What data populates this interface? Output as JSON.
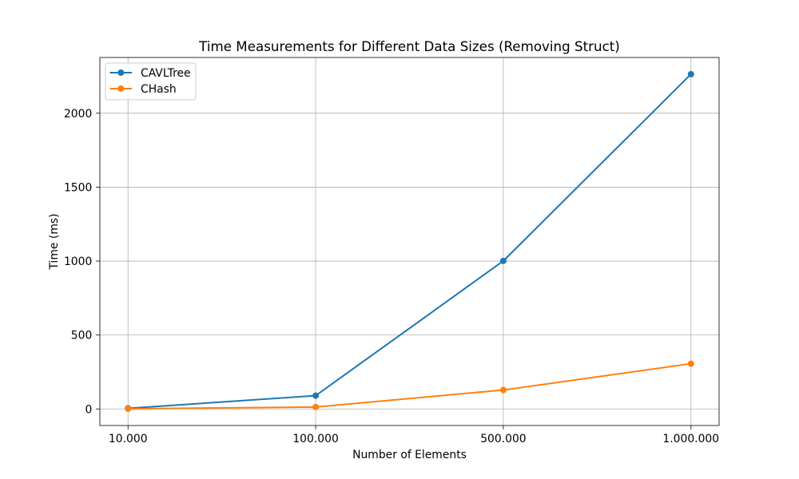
{
  "chart_data": {
    "type": "line",
    "title": "Time Measurements for Different Data Sizes (Removing Struct)",
    "xlabel": "Number of Elements",
    "ylabel": "Time (ms)",
    "categories": [
      "10.000",
      "100.000",
      "500.000",
      "1.000.000"
    ],
    "series": [
      {
        "name": "CAVLTree",
        "color": "#1f77b4",
        "marker": "circle",
        "values": [
          4,
          90,
          1001,
          2264
        ]
      },
      {
        "name": "CHash",
        "color": "#ff7f0e",
        "marker": "circle",
        "values": [
          1,
          13,
          128,
          306
        ]
      }
    ],
    "yticks": [
      0,
      500,
      1000,
      1500,
      2000
    ],
    "ylim": [
      -112,
      2377
    ],
    "grid": true,
    "legend": "top-left"
  }
}
